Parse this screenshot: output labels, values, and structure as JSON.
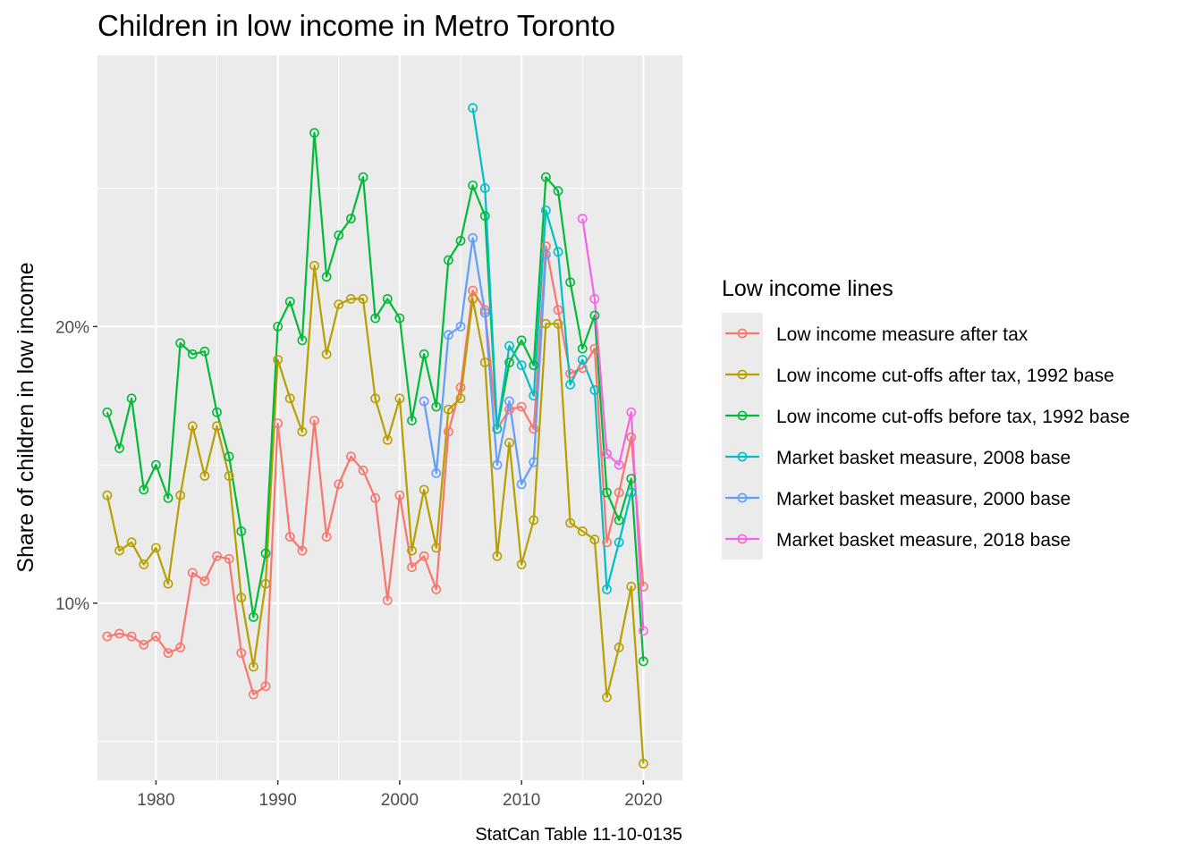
{
  "chart_data": {
    "type": "line",
    "title": "Children in low income in Metro Toronto",
    "xlabel": "",
    "ylabel": "Share of children in low income",
    "caption": "StatCan Table 11-10-0135",
    "legend_title": "Low income lines",
    "legend_position": "right",
    "grid": true,
    "xlim": [
      1975.2,
      2023.2
    ],
    "ylim": [
      3.6,
      29.8
    ],
    "x_ticks": [
      1980,
      1990,
      2000,
      2010,
      2020
    ],
    "x_tick_labels": [
      "1980",
      "1990",
      "2000",
      "2010",
      "2020"
    ],
    "y_ticks": [
      10,
      20
    ],
    "y_tick_labels": [
      "10%",
      "20%"
    ],
    "background_color": "#ebebeb",
    "grid_color": "#ffffff",
    "series": [
      {
        "name": "Low income measure after tax",
        "color": "#F8766D",
        "x": [
          1976,
          1977,
          1978,
          1979,
          1980,
          1981,
          1982,
          1983,
          1984,
          1985,
          1986,
          1987,
          1988,
          1989,
          1990,
          1991,
          1992,
          1993,
          1994,
          1995,
          1996,
          1997,
          1998,
          1999,
          2000,
          2001,
          2002,
          2003,
          2004,
          2005,
          2006,
          2007,
          2008,
          2009,
          2010,
          2011,
          2012,
          2013,
          2014,
          2015,
          2016,
          2017,
          2018,
          2019,
          2020
        ],
        "y": [
          8.8,
          8.9,
          8.8,
          8.5,
          8.8,
          8.2,
          8.4,
          11.1,
          10.8,
          11.7,
          11.6,
          8.2,
          6.7,
          7.0,
          16.5,
          12.4,
          11.9,
          16.6,
          12.4,
          14.3,
          15.3,
          14.8,
          13.8,
          10.1,
          13.9,
          11.3,
          11.7,
          10.5,
          16.2,
          17.8,
          21.3,
          20.6,
          16.3,
          17.0,
          17.1,
          16.3,
          22.9,
          20.6,
          18.3,
          18.5,
          19.2,
          12.2,
          14.0,
          16.0,
          10.6
        ]
      },
      {
        "name": "Low income cut-offs after tax, 1992 base",
        "color": "#B79F00",
        "x": [
          1976,
          1977,
          1978,
          1979,
          1980,
          1981,
          1982,
          1983,
          1984,
          1985,
          1986,
          1987,
          1988,
          1989,
          1990,
          1991,
          1992,
          1993,
          1994,
          1995,
          1996,
          1997,
          1998,
          1999,
          2000,
          2001,
          2002,
          2003,
          2004,
          2005,
          2006,
          2007,
          2008,
          2009,
          2010,
          2011,
          2012,
          2013,
          2014,
          2015,
          2016,
          2017,
          2018,
          2019,
          2020
        ],
        "y": [
          13.9,
          11.9,
          12.2,
          11.4,
          12.0,
          10.7,
          13.9,
          16.4,
          14.6,
          16.4,
          14.6,
          10.2,
          7.7,
          10.7,
          18.8,
          17.4,
          16.2,
          22.2,
          19.0,
          20.8,
          21.0,
          21.0,
          17.4,
          15.9,
          17.4,
          11.9,
          14.1,
          12.0,
          17.0,
          17.4,
          21.0,
          18.7,
          11.7,
          15.8,
          11.4,
          13.0,
          20.1,
          20.1,
          12.9,
          12.6,
          12.3,
          6.6,
          8.4,
          10.6,
          4.2
        ]
      },
      {
        "name": "Low income cut-offs before tax, 1992 base",
        "color": "#00BA38",
        "x": [
          1976,
          1977,
          1978,
          1979,
          1980,
          1981,
          1982,
          1983,
          1984,
          1985,
          1986,
          1987,
          1988,
          1989,
          1990,
          1991,
          1992,
          1993,
          1994,
          1995,
          1996,
          1997,
          1998,
          1999,
          2000,
          2001,
          2002,
          2003,
          2004,
          2005,
          2006,
          2007,
          2008,
          2009,
          2010,
          2011,
          2012,
          2013,
          2014,
          2015,
          2016,
          2017,
          2018,
          2019,
          2020
        ],
        "y": [
          16.9,
          15.6,
          17.4,
          14.1,
          15.0,
          13.8,
          19.4,
          19.0,
          19.1,
          16.9,
          15.3,
          12.6,
          9.5,
          11.8,
          20.0,
          20.9,
          19.5,
          27.0,
          21.8,
          23.3,
          23.9,
          25.4,
          20.3,
          21.0,
          20.3,
          16.6,
          19.0,
          17.1,
          22.4,
          23.1,
          25.1,
          24.0,
          16.3,
          18.7,
          19.5,
          18.6,
          25.4,
          24.9,
          21.6,
          19.2,
          20.4,
          14.0,
          13.0,
          14.5,
          7.9
        ]
      },
      {
        "name": "Market basket measure, 2008 base",
        "color": "#00BFC4",
        "x": [
          2006,
          2007,
          2008,
          2009,
          2010,
          2011,
          2012,
          2013,
          2014,
          2015,
          2016,
          2017,
          2018,
          2019
        ],
        "y": [
          27.9,
          25.0,
          16.3,
          19.3,
          18.6,
          17.5,
          24.2,
          22.7,
          17.9,
          18.8,
          17.7,
          10.5,
          12.2,
          14.0
        ]
      },
      {
        "name": "Market basket measure, 2000 base",
        "color": "#619CFF",
        "x": [
          2002,
          2003,
          2004,
          2005,
          2006,
          2007,
          2008,
          2009,
          2010,
          2011,
          2012
        ],
        "y": [
          17.3,
          14.7,
          19.7,
          20.0,
          23.2,
          20.5,
          15.0,
          17.3,
          14.3,
          15.1,
          22.6
        ]
      },
      {
        "name": "Market basket measure, 2018 base",
        "color": "#F564E3",
        "x": [
          2015,
          2016,
          2017,
          2018,
          2019,
          2020
        ],
        "y": [
          23.9,
          21.0,
          15.4,
          15.0,
          16.9,
          9.0
        ]
      }
    ]
  }
}
